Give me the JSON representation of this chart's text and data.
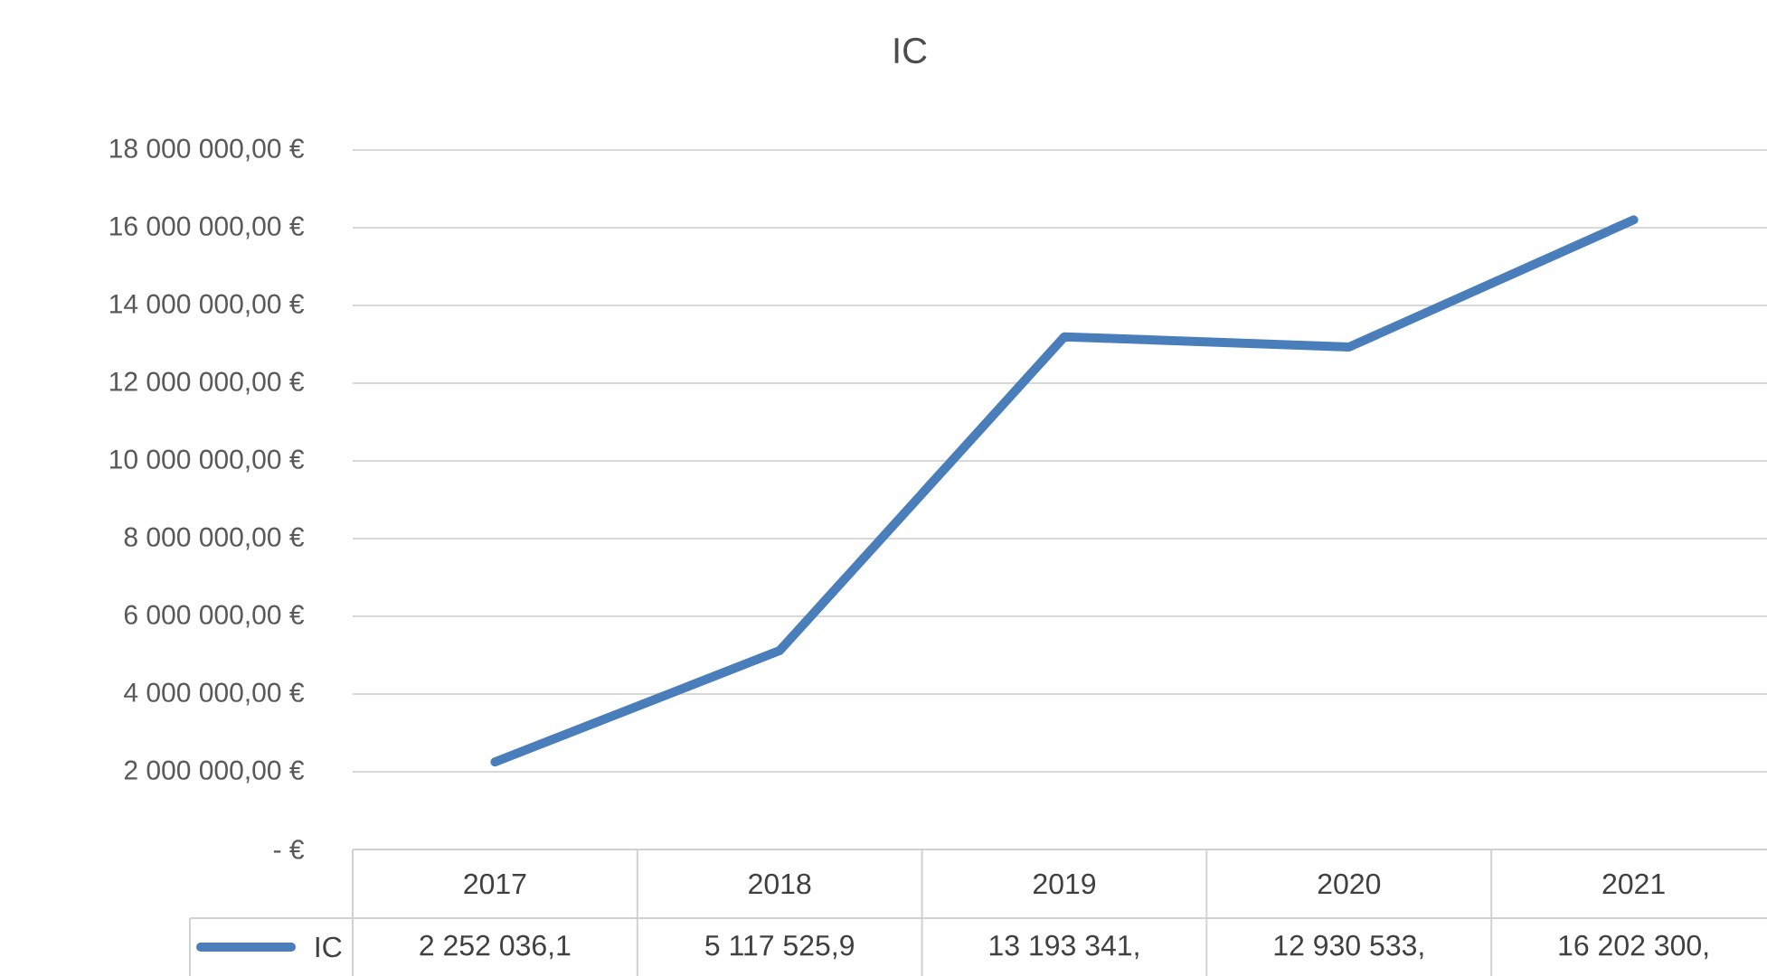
{
  "chart_data": {
    "type": "line",
    "title": "IC",
    "categories": [
      "2017",
      "2018",
      "2019",
      "2020",
      "2021"
    ],
    "series": [
      {
        "name": "IC",
        "color": "#4a7ebb",
        "values": [
          2252036.1,
          5117525.9,
          13193341,
          12930533,
          16202300
        ],
        "value_labels": [
          "2 252 036,1",
          "5 117 525,9",
          "13 193 341,",
          "12 930 533,",
          "16 202 300,"
        ]
      }
    ],
    "ylim": [
      0,
      18000000
    ],
    "yticks": [
      {
        "value": 0,
        "label": "-   €"
      },
      {
        "value": 2000000,
        "label": "2 000 000,00 €"
      },
      {
        "value": 4000000,
        "label": "4 000 000,00 €"
      },
      {
        "value": 6000000,
        "label": "6 000 000,00 €"
      },
      {
        "value": 8000000,
        "label": "8 000 000,00 €"
      },
      {
        "value": 10000000,
        "label": "10 000 000,00 €"
      },
      {
        "value": 12000000,
        "label": "12 000 000,00 €"
      },
      {
        "value": 14000000,
        "label": "14 000 000,00 €"
      },
      {
        "value": 16000000,
        "label": "16 000 000,00 €"
      },
      {
        "value": 18000000,
        "label": "18 000 000,00 €"
      }
    ],
    "grid": "y",
    "legend": "bottom",
    "marker": "none",
    "line_style": "solid"
  }
}
